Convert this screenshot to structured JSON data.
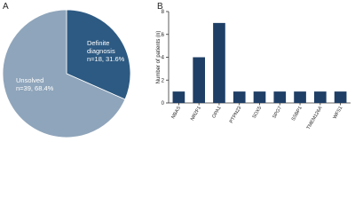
{
  "chart_data": [
    {
      "type": "pie",
      "panel_label": "A",
      "categories": [
        "Definite diagnosis",
        "Unsolved"
      ],
      "values": [
        31.6,
        68.4
      ],
      "value_labels": [
        "n=18, 31.6%",
        "n=39, 68.4%"
      ],
      "colors": [
        "#2d5a82",
        "#8fa5bb"
      ]
    },
    {
      "type": "bar",
      "panel_label": "B",
      "ylabel": "Number of patients (n)",
      "categories": [
        "NBAS",
        "NR2F1",
        "OPA1",
        "PTPN23",
        "SOX5",
        "SPG7",
        "SSBP1",
        "TMEM126A",
        "WFS1"
      ],
      "values": [
        1,
        4,
        7,
        1,
        1,
        1,
        1,
        1,
        1
      ],
      "color": "#1f3f66",
      "ylim": [
        0,
        8
      ],
      "yticks": [
        0,
        2,
        4,
        6,
        8
      ]
    }
  ]
}
